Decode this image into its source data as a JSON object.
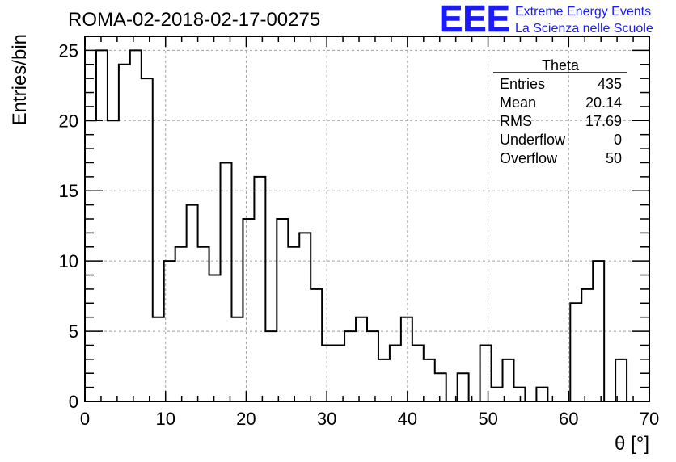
{
  "chart_data": {
    "type": "histogram",
    "title": "ROMA-02-2018-02-17-00275",
    "xlabel": "θ [°]",
    "ylabel": "Entries/bin",
    "xlim": [
      0,
      70
    ],
    "ylim": [
      0,
      26
    ],
    "x_ticks": [
      0,
      10,
      20,
      30,
      40,
      50,
      60,
      70
    ],
    "y_ticks": [
      0,
      5,
      10,
      15,
      20,
      25
    ],
    "grid": true,
    "bin_width": 1.4,
    "bin_edges_start": 0,
    "values": [
      20,
      25,
      20,
      24,
      25,
      23,
      6,
      10,
      11,
      14,
      11,
      9,
      17,
      6,
      13,
      16,
      5,
      13,
      11,
      12,
      8,
      4,
      4,
      5,
      6,
      5,
      3,
      4,
      6,
      4,
      3,
      2,
      0,
      2,
      0,
      4,
      1,
      3,
      1,
      0,
      1,
      0,
      0,
      7,
      8,
      10,
      0,
      3,
      0,
      0
    ],
    "stats_box": {
      "title": "Theta",
      "rows": [
        {
          "label": "Entries",
          "value": "435"
        },
        {
          "label": "Mean",
          "value": "20.14"
        },
        {
          "label": "RMS",
          "value": "17.69"
        },
        {
          "label": "Underflow",
          "value": "0"
        },
        {
          "label": "Overflow",
          "value": "50"
        }
      ]
    }
  },
  "logo": {
    "mark": "EEE",
    "line1": "Extreme Energy Events",
    "line2": "La Scienza nelle Scuole",
    "color": "#1a1aff"
  }
}
